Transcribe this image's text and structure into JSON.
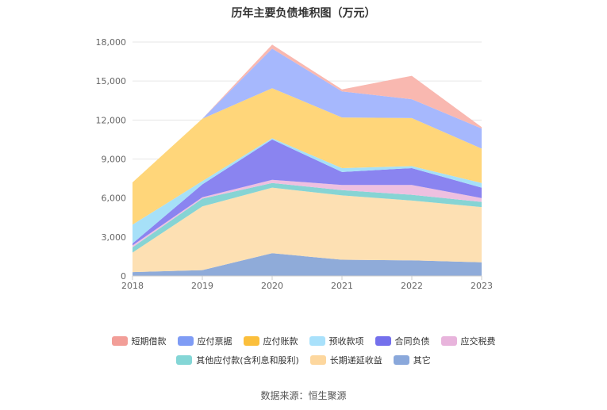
{
  "title": "历年主要负债堆积图（万元）",
  "source": "数据来源：恒生聚源",
  "chart_data": {
    "type": "area",
    "stacked": true,
    "categories": [
      "2018",
      "2019",
      "2020",
      "2021",
      "2022",
      "2023"
    ],
    "ylim": [
      0,
      18000
    ],
    "yticks": [
      "0",
      "3,000",
      "6,000",
      "9,000",
      "12,000",
      "15,000",
      "18,000"
    ],
    "ytick_values": [
      0,
      3000,
      6000,
      9000,
      12000,
      15000,
      18000
    ],
    "grid": true,
    "legend_position": "bottom",
    "series": [
      {
        "name": "其它",
        "color": "#8fabd9",
        "values": [
          300,
          450,
          1750,
          1250,
          1200,
          1050
        ]
      },
      {
        "name": "长期递延收益",
        "color": "#fde0b3",
        "values": [
          1500,
          4900,
          5050,
          4950,
          4600,
          4250
        ]
      },
      {
        "name": "其他应付款(含利息和股利)",
        "color": "#86d4d4",
        "values": [
          400,
          600,
          350,
          400,
          450,
          400
        ]
      },
      {
        "name": "应交税费",
        "color": "#eec0e0",
        "values": [
          150,
          100,
          250,
          400,
          750,
          300
        ]
      },
      {
        "name": "合同负债",
        "color": "#8a84f0",
        "values": [
          150,
          1000,
          3100,
          1000,
          1300,
          800
        ]
      },
      {
        "name": "预收款项",
        "color": "#a6e0f8",
        "values": [
          1450,
          250,
          100,
          300,
          150,
          350
        ]
      },
      {
        "name": "应付账款",
        "color": "#ffd67a",
        "values": [
          3250,
          4800,
          3850,
          3900,
          3700,
          2650
        ]
      },
      {
        "name": "应付票据",
        "color": "#a6b8fd",
        "values": [
          0,
          0,
          3050,
          2000,
          1450,
          1550
        ]
      },
      {
        "name": "短期借款",
        "color": "#f9b8b0",
        "values": [
          0,
          0,
          300,
          150,
          1800,
          100
        ]
      }
    ]
  },
  "legend": {
    "row1": [
      {
        "label": "短期借款",
        "color": "#f29e98"
      },
      {
        "label": "应付票据",
        "color": "#7f9cf5"
      },
      {
        "label": "应付账款",
        "color": "#fbbf3c"
      },
      {
        "label": "预收款项",
        "color": "#a9e1fb"
      },
      {
        "label": "合同负债",
        "color": "#7470ec"
      },
      {
        "label": "应交税费",
        "color": "#e8b4dc"
      }
    ],
    "row2": [
      {
        "label": "其他应付款(含利息和股利)",
        "color": "#84d6d6"
      },
      {
        "label": "长期递延收益",
        "color": "#fdd79e"
      },
      {
        "label": "其它",
        "color": "#8aa8db"
      }
    ]
  }
}
